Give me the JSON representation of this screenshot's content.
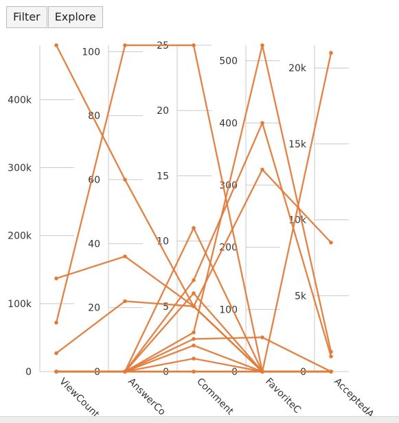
{
  "toolbar": {
    "filter_label": "Filter",
    "explore_label": "Explore"
  },
  "colors": {
    "line": "#e07b39",
    "axis": "#c8c8c8",
    "text": "#333333",
    "background": "#ffffff"
  },
  "chart_data": {
    "type": "parallel-coordinates",
    "axes": [
      {
        "label": "ViewCount",
        "range": [
          0,
          480000
        ],
        "ticks": [
          0,
          100000,
          200000,
          300000,
          400000
        ],
        "tick_labels": [
          "0",
          "100k",
          "200k",
          "300k",
          "400k"
        ]
      },
      {
        "label": "AnswerCo",
        "range": [
          0,
          102
        ],
        "ticks": [
          0,
          20,
          40,
          60,
          80,
          100
        ],
        "tick_labels": [
          "0",
          "20",
          "40",
          "60",
          "80",
          "100"
        ]
      },
      {
        "label": "Comment",
        "range": [
          0,
          25
        ],
        "ticks": [
          0,
          5,
          10,
          15,
          20,
          25
        ],
        "tick_labels": [
          "0",
          "5",
          "10",
          "15",
          "20",
          "25"
        ]
      },
      {
        "label": "FavoriteC",
        "range": [
          0,
          525
        ],
        "ticks": [
          0,
          100,
          200,
          300,
          400,
          500
        ],
        "tick_labels": [
          "0",
          "100",
          "200",
          "300",
          "400",
          "500"
        ]
      },
      {
        "label": "AcceptedA",
        "range": [
          0,
          21500
        ],
        "ticks": [
          0,
          5000,
          10000,
          15000,
          20000
        ],
        "tick_labels": [
          "0",
          "5k",
          "10k",
          "15k",
          "20k"
        ]
      }
    ],
    "records": [
      [
        480000,
        60,
        5,
        325,
        8500
      ],
      [
        72000,
        102,
        25,
        0,
        0
      ],
      [
        137000,
        36,
        5,
        0,
        0
      ],
      [
        27000,
        22,
        5,
        0,
        0
      ],
      [
        0,
        0,
        3,
        525,
        1300
      ],
      [
        0,
        0,
        11,
        0,
        21000
      ],
      [
        0,
        0,
        7,
        400,
        1000
      ],
      [
        0,
        0,
        6,
        0,
        0
      ],
      [
        0,
        0,
        2,
        0,
        0
      ],
      [
        0,
        0,
        1,
        0,
        0
      ],
      [
        0,
        0,
        2.5,
        55,
        0
      ],
      [
        0,
        0,
        0,
        0,
        0
      ],
      [
        0,
        0,
        0,
        0,
        0
      ]
    ]
  }
}
